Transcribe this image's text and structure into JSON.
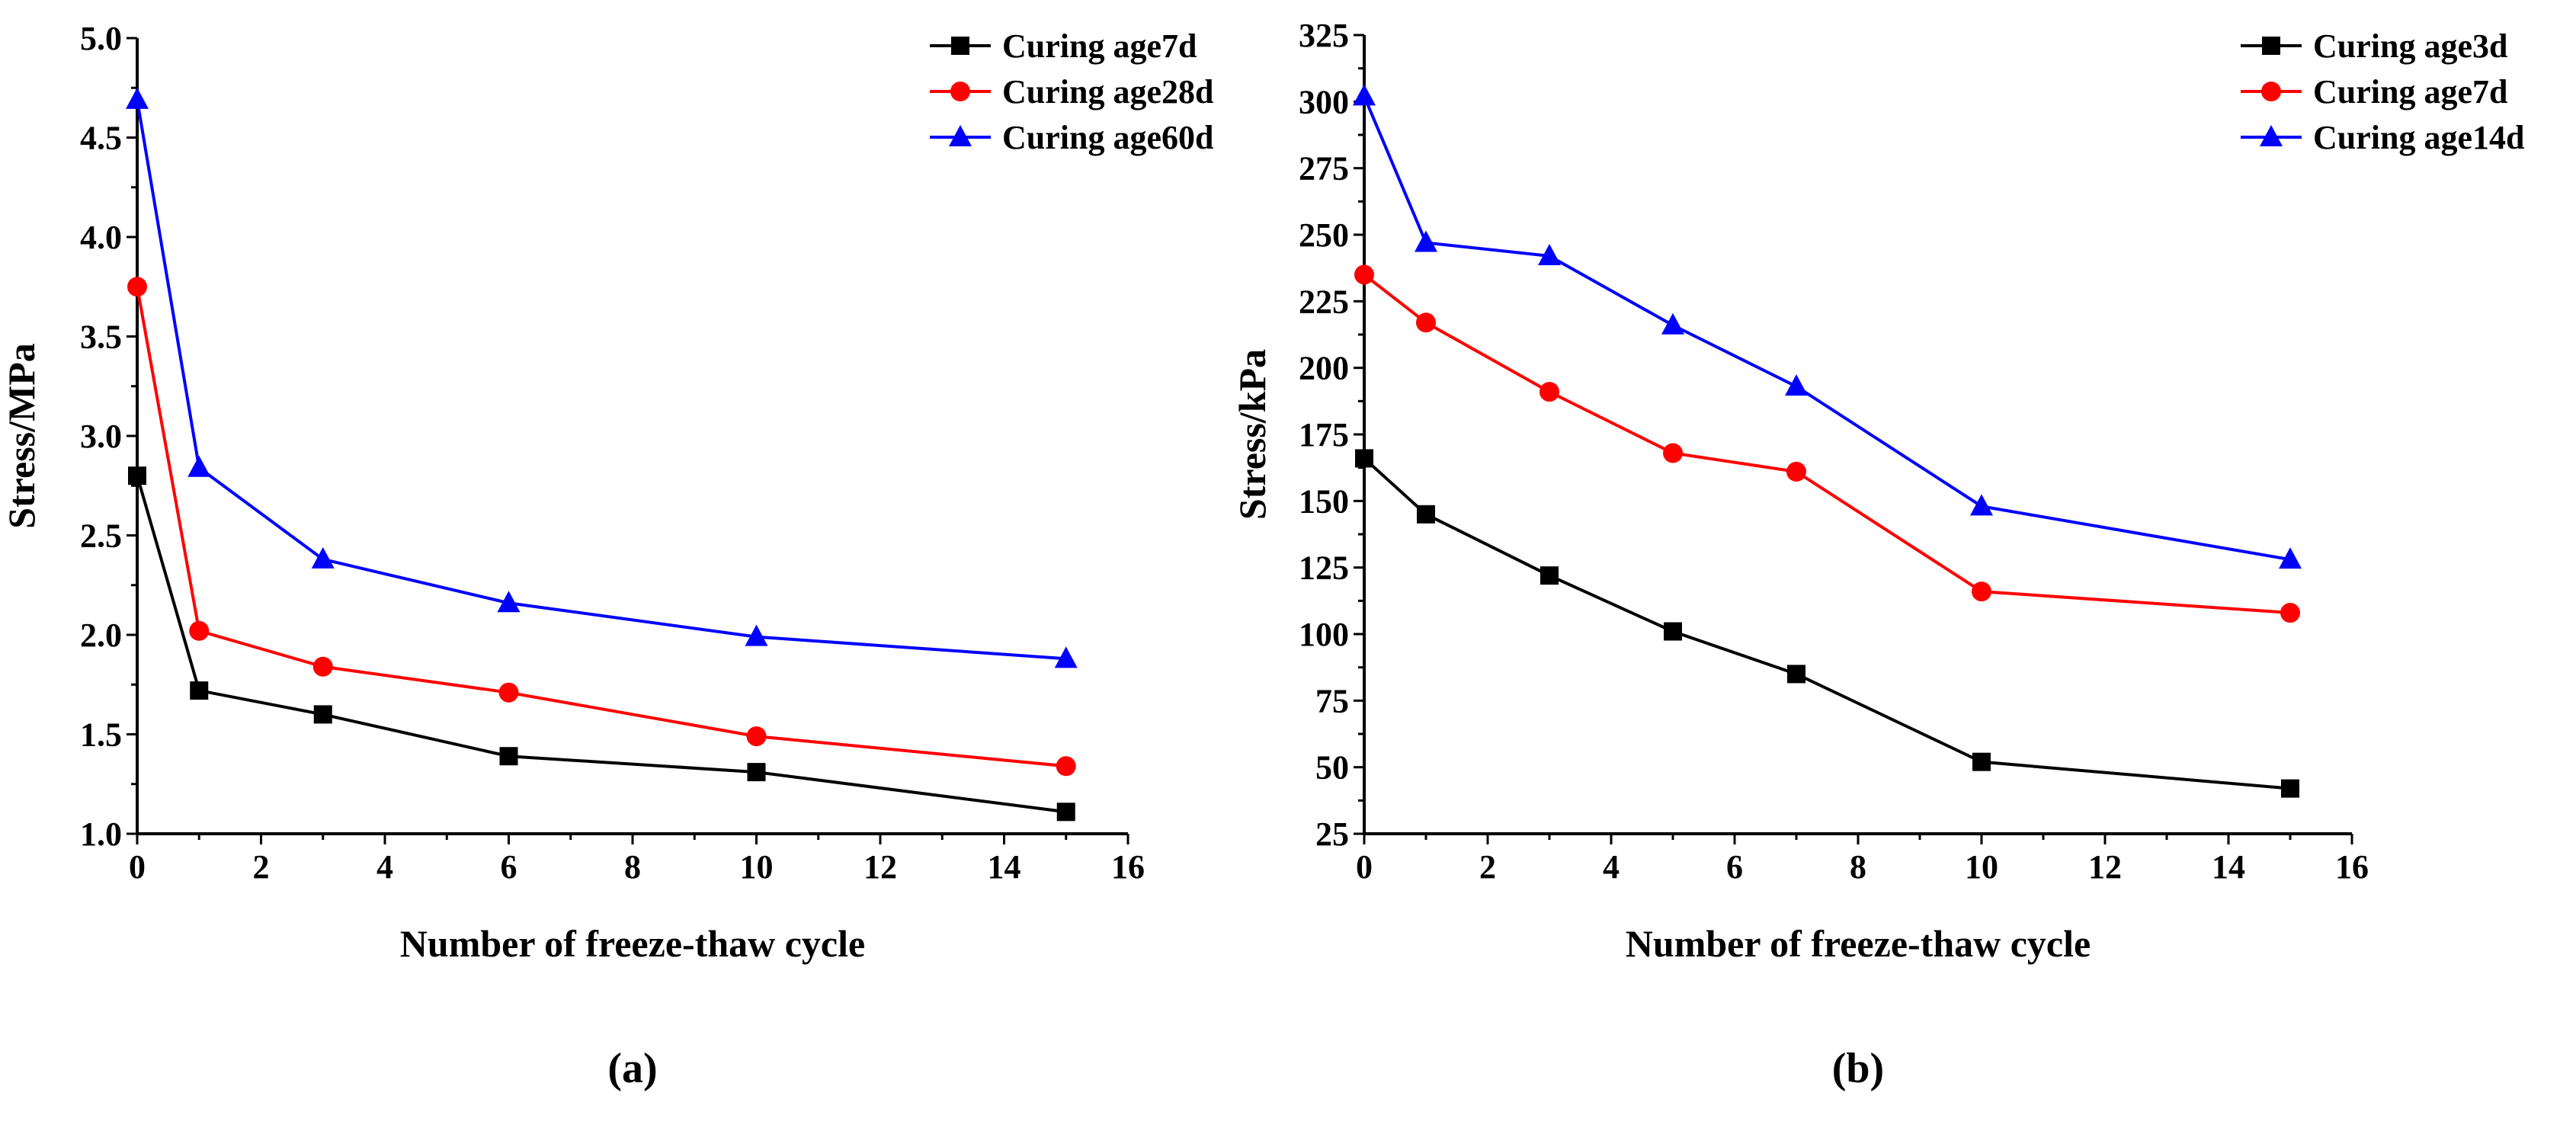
{
  "chart_data": [
    {
      "type": "line",
      "panel_label": "(a)",
      "panel_letter": "a",
      "xlabel": "Number of freeze-thaw cycle",
      "ylabel": "Stress/MPa",
      "xlim": [
        0,
        16
      ],
      "ylim": [
        1.0,
        5.0
      ],
      "xticks": [
        0,
        2,
        4,
        6,
        8,
        10,
        12,
        14,
        16
      ],
      "yticks": [
        "1.0",
        "1.5",
        "2.0",
        "2.5",
        "3.0",
        "3.5",
        "4.0",
        "4.5",
        "5.0"
      ],
      "x": [
        0,
        1,
        3,
        6,
        10,
        15
      ],
      "legend_position": "top-right",
      "grid": false,
      "series": [
        {
          "name": "Curing age7d",
          "color": "#000000",
          "marker": "square",
          "values": [
            2.8,
            1.72,
            1.6,
            1.39,
            1.31,
            1.11
          ]
        },
        {
          "name": "Curing age28d",
          "color": "#ff0000",
          "marker": "circle",
          "values": [
            3.75,
            2.02,
            1.84,
            1.71,
            1.49,
            1.34
          ]
        },
        {
          "name": "Curing age60d",
          "color": "#0000ff",
          "marker": "triangle",
          "values": [
            4.69,
            2.84,
            2.38,
            2.16,
            1.99,
            1.88
          ]
        }
      ]
    },
    {
      "type": "line",
      "panel_label": "(b)",
      "panel_letter": "b",
      "xlabel": "Number of freeze-thaw cycle",
      "ylabel": "Stress/kPa",
      "xlim": [
        0,
        16
      ],
      "ylim": [
        25,
        325
      ],
      "xticks": [
        0,
        2,
        4,
        6,
        8,
        10,
        12,
        14,
        16
      ],
      "yticks": [
        "25",
        "50",
        "75",
        "100",
        "125",
        "150",
        "175",
        "200",
        "225",
        "250",
        "275",
        "300",
        "325"
      ],
      "x": [
        0,
        1,
        3,
        5,
        7,
        10,
        15
      ],
      "legend_position": "top-right",
      "grid": false,
      "series": [
        {
          "name": "Curing age3d",
          "color": "#000000",
          "marker": "square",
          "values": [
            166,
            145,
            122,
            101,
            85,
            52,
            42
          ]
        },
        {
          "name": "Curing age7d",
          "color": "#ff0000",
          "marker": "circle",
          "values": [
            235,
            217,
            191,
            168,
            161,
            116,
            108
          ]
        },
        {
          "name": "Curing age14d",
          "color": "#0000ff",
          "marker": "triangle",
          "values": [
            302,
            247,
            242,
            216,
            193,
            148,
            128
          ]
        }
      ]
    }
  ]
}
